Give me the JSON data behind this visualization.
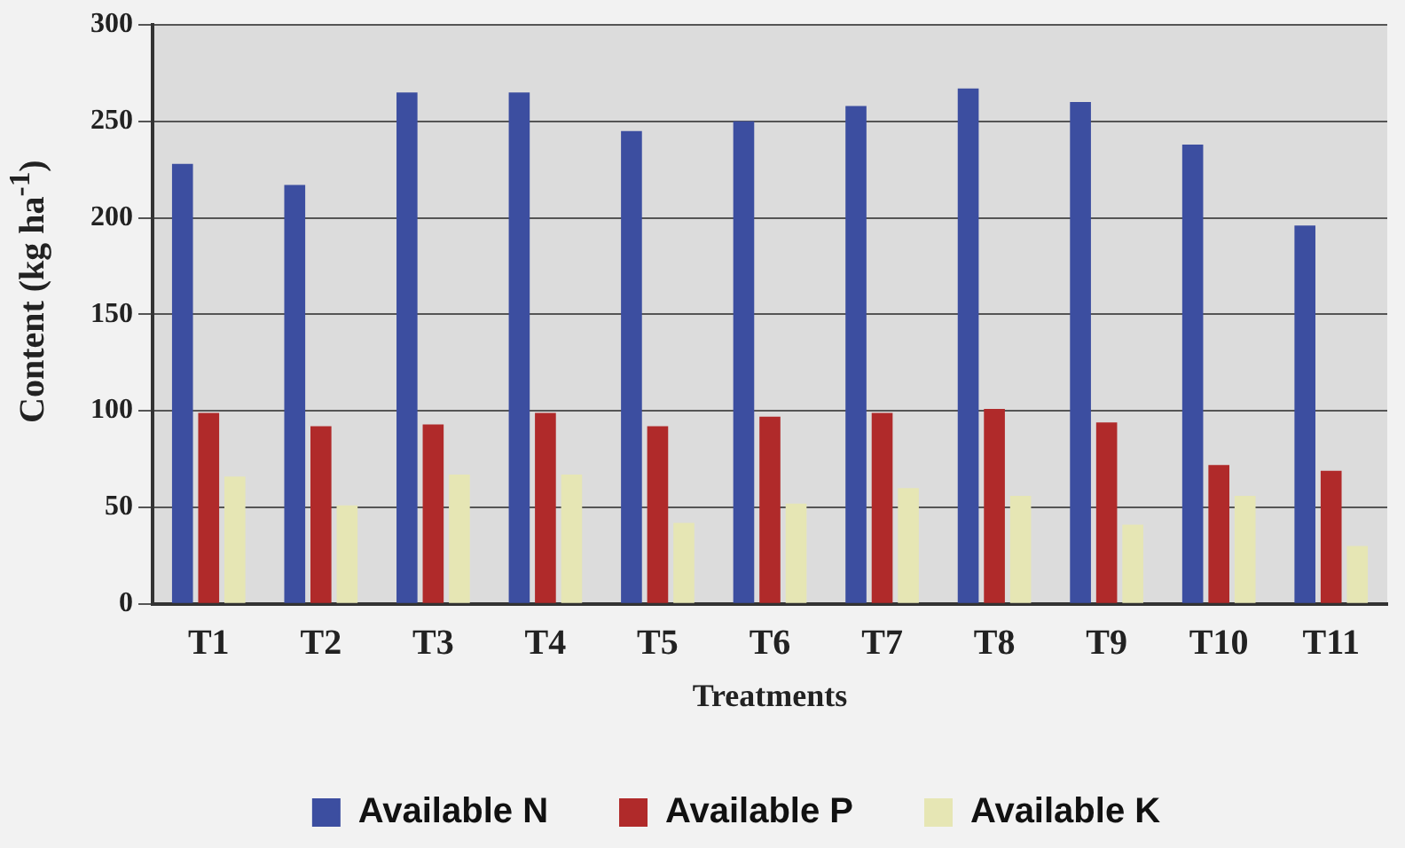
{
  "chart_data": {
    "type": "bar",
    "xlabel": "Treatments",
    "ylabel": "Content (kg ha$^{-1}$)",
    "categories": [
      "T1",
      "T2",
      "T3",
      "T4",
      "T5",
      "T6",
      "T7",
      "T8",
      "T9",
      "T10",
      "T11"
    ],
    "series": [
      {
        "name": "Available N",
        "color": "#3c4ea0",
        "values": [
          228,
          217,
          265,
          265,
          245,
          250,
          258,
          267,
          260,
          238,
          196
        ]
      },
      {
        "name": "Available P",
        "color": "#b02a2a",
        "values": [
          99,
          92,
          93,
          99,
          92,
          97,
          99,
          101,
          94,
          72,
          69
        ]
      },
      {
        "name": "Available K",
        "color": "#e6e6b4",
        "values": [
          66,
          51,
          67,
          67,
          42,
          52,
          60,
          56,
          41,
          56,
          30
        ]
      }
    ],
    "ylim": [
      0,
      300
    ],
    "yticks": [
      0,
      50,
      100,
      150,
      200,
      250,
      300
    ],
    "grid": "y",
    "legend": "bottom"
  }
}
